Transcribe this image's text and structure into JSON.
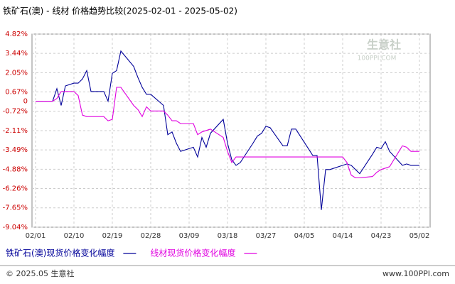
{
  "chart_data": {
    "type": "line",
    "title": "铁矿石(澳) - 线材 价格趋势比较(2025-02-01 - 2025-05-02)",
    "annotations": [
      "生意社",
      "100PPI.COM",
      "© 2025.05 生意社",
      "www.100PPI.com"
    ],
    "x": [
      "02/01",
      "02/05",
      "02/06",
      "02/07",
      "02/08",
      "02/10",
      "02/11",
      "02/12",
      "02/13",
      "02/14",
      "02/17",
      "02/18",
      "02/19",
      "02/20",
      "02/21",
      "02/24",
      "02/25",
      "02/26",
      "02/27",
      "02/28",
      "03/03",
      "03/04",
      "03/05",
      "03/06",
      "03/07",
      "03/10",
      "03/11",
      "03/12",
      "03/13",
      "03/14",
      "03/17",
      "03/18",
      "03/19",
      "03/20",
      "03/21",
      "03/24",
      "03/25",
      "03/26",
      "03/27",
      "03/28",
      "03/31",
      "04/01",
      "04/02",
      "04/03",
      "04/07",
      "04/08",
      "04/09",
      "04/10",
      "04/11",
      "04/14",
      "04/15",
      "04/16",
      "04/17",
      "04/18",
      "04/21",
      "04/22",
      "04/23",
      "04/24",
      "04/25",
      "04/28",
      "04/29",
      "04/30",
      "05/02"
    ],
    "xticks": [
      "02/01",
      "02/10",
      "02/19",
      "02/28",
      "03/09",
      "03/18",
      "03/27",
      "04/05",
      "04/14",
      "04/23",
      "05/02"
    ],
    "series": [
      {
        "name": "铁矿石(澳)现货价格变化幅度",
        "color": "#000099",
        "values": [
          0,
          0,
          0.9,
          -0.3,
          1.1,
          1.3,
          1.3,
          1.6,
          2.2,
          0.7,
          0.7,
          0,
          2.0,
          2.2,
          3.6,
          2.5,
          1.7,
          1.0,
          0.5,
          0.5,
          -0.3,
          -2.4,
          -2.2,
          -3.0,
          -3.6,
          -3.3,
          -4.0,
          -2.6,
          -3.3,
          -2.3,
          -1.3,
          -3.0,
          -4.2,
          -4.6,
          -4.4,
          -3.0,
          -2.5,
          -2.3,
          -1.8,
          -1.9,
          -3.2,
          -3.2,
          -2.0,
          -2.0,
          -3.9,
          -3.9,
          -7.8,
          -4.9,
          -4.9,
          -4.6,
          -4.5,
          -4.6,
          -4.9,
          -5.2,
          -3.8,
          -3.3,
          -3.4,
          -2.9,
          -3.6,
          -4.6,
          -4.5,
          -4.6,
          -4.6
        ]
      },
      {
        "name": "线材现货价格变化幅度",
        "color": "#e000e0",
        "values": [
          0,
          0,
          0.2,
          0.7,
          0.7,
          0.7,
          0.4,
          -1.0,
          -1.1,
          -1.1,
          -1.1,
          -1.4,
          -1.3,
          1.0,
          1.0,
          -0.3,
          -0.6,
          -1.1,
          -0.4,
          -0.7,
          -0.7,
          -1.0,
          -1.4,
          -1.4,
          -1.6,
          -1.6,
          -2.4,
          -2.2,
          -2.1,
          -2.0,
          -2.6,
          -3.6,
          -4.4,
          -4.0,
          -4.0,
          -4.0,
          -4.0,
          -4.0,
          -4.0,
          -4.0,
          -4.0,
          -4.0,
          -4.0,
          -4.0,
          -4.0,
          -4.0,
          -4.0,
          -4.0,
          -4.0,
          -4.0,
          -4.4,
          -5.3,
          -5.5,
          -5.5,
          -5.4,
          -5.1,
          -4.9,
          -4.8,
          -4.7,
          -3.2,
          -3.3,
          -3.6,
          -3.6
        ]
      }
    ],
    "ylim": [
      -9.04,
      4.82
    ],
    "yticks": [
      {
        "value": 4.82,
        "label": "4.82%"
      },
      {
        "value": 3.44,
        "label": "3.44%"
      },
      {
        "value": 2.05,
        "label": "2.05%"
      },
      {
        "value": 0.67,
        "label": "0.67%"
      },
      0,
      {
        "value": -0.72,
        "label": "-0.72%"
      },
      {
        "value": -2.11,
        "label": "-2.11%"
      },
      {
        "value": -3.49,
        "label": "-3.49%"
      },
      {
        "value": -4.88,
        "label": "-4.88%"
      },
      {
        "value": -6.26,
        "label": "-6.26%"
      },
      {
        "value": -7.65,
        "label": "-7.65%"
      },
      {
        "value": -9.04,
        "label": "-9.04%"
      }
    ],
    "grid": true
  }
}
